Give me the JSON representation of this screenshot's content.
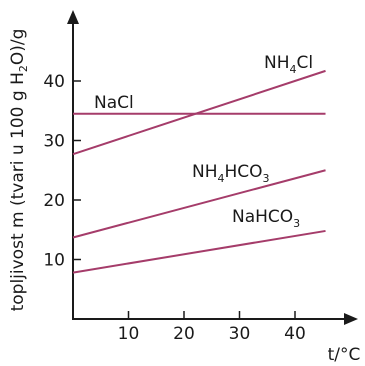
{
  "chart_data": {
    "type": "line",
    "ylabel_main": "topljivost m (tvari u 100 g H",
    "ylabel_sub": "2",
    "ylabel_tail": "O)/g",
    "xlabel": "t/°C",
    "xticks": [
      10,
      20,
      30,
      40
    ],
    "yticks": [
      10,
      20,
      30,
      40
    ],
    "xlim": [
      0,
      46
    ],
    "ylim": [
      0,
      46
    ],
    "grid": false,
    "line_color": "#a53c6a",
    "series": [
      {
        "label_parts": [
          {
            "t": "NH"
          },
          {
            "t": "4",
            "sub": true
          },
          {
            "t": "Cl"
          }
        ],
        "points": [
          [
            0,
            27.7
          ],
          [
            45.5,
            41.7
          ]
        ]
      },
      {
        "label_parts": [
          {
            "t": "NaCl"
          }
        ],
        "points": [
          [
            0,
            34.5
          ],
          [
            45.5,
            34.5
          ]
        ]
      },
      {
        "label_parts": [
          {
            "t": "NH"
          },
          {
            "t": "4",
            "sub": true
          },
          {
            "t": "HCO"
          },
          {
            "t": "3",
            "sub": true
          }
        ],
        "points": [
          [
            0,
            13.7
          ],
          [
            45.5,
            25.0
          ]
        ]
      },
      {
        "label_parts": [
          {
            "t": "NaHCO"
          },
          {
            "t": "3",
            "sub": true
          }
        ],
        "points": [
          [
            0,
            7.8
          ],
          [
            45.5,
            14.8
          ]
        ]
      }
    ]
  }
}
